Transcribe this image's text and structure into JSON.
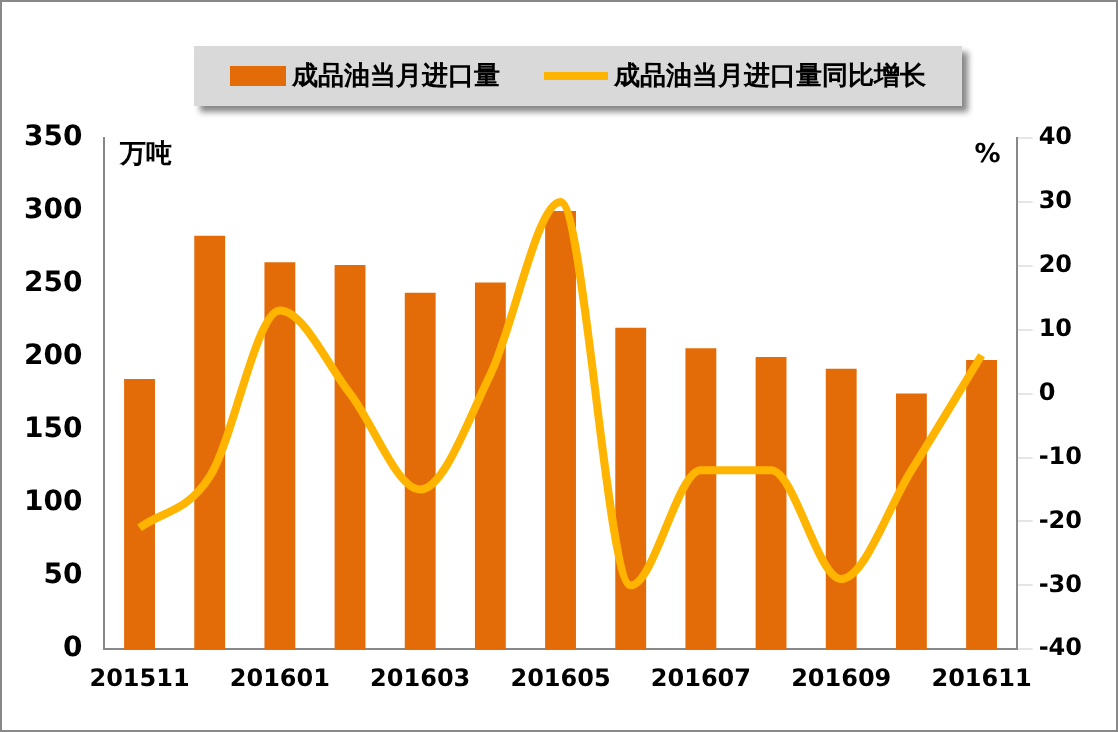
{
  "chart_data": {
    "type": "bar",
    "categories": [
      "201511",
      null,
      "201601",
      null,
      "201603",
      null,
      "201605",
      null,
      "201607",
      null,
      "201609",
      null,
      "201611"
    ],
    "series": [
      {
        "name": "成品油当月进口量",
        "color": "#e36c09",
        "values": [
          185,
          283,
          265,
          263,
          244,
          251,
          300,
          220,
          206,
          200,
          192,
          175,
          198
        ]
      },
      {
        "name": "成品油当月进口量同比增长",
        "type": "line",
        "axis": "y2",
        "color": "#ffb400",
        "values": [
          -21,
          -13,
          13,
          0,
          -15,
          3,
          30,
          -30,
          -12,
          -12,
          -29,
          -12,
          6
        ]
      }
    ],
    "ylabel": "万吨",
    "y2label": "%",
    "ylim": [
      0,
      350
    ],
    "yticks": [
      0,
      50,
      100,
      150,
      200,
      250,
      300,
      350
    ],
    "y2lim": [
      -40,
      40
    ],
    "y2ticks": [
      -40,
      -30,
      -20,
      -10,
      0,
      10,
      20,
      30,
      40
    ],
    "grid": false,
    "legend": "top",
    "marker": "none"
  }
}
